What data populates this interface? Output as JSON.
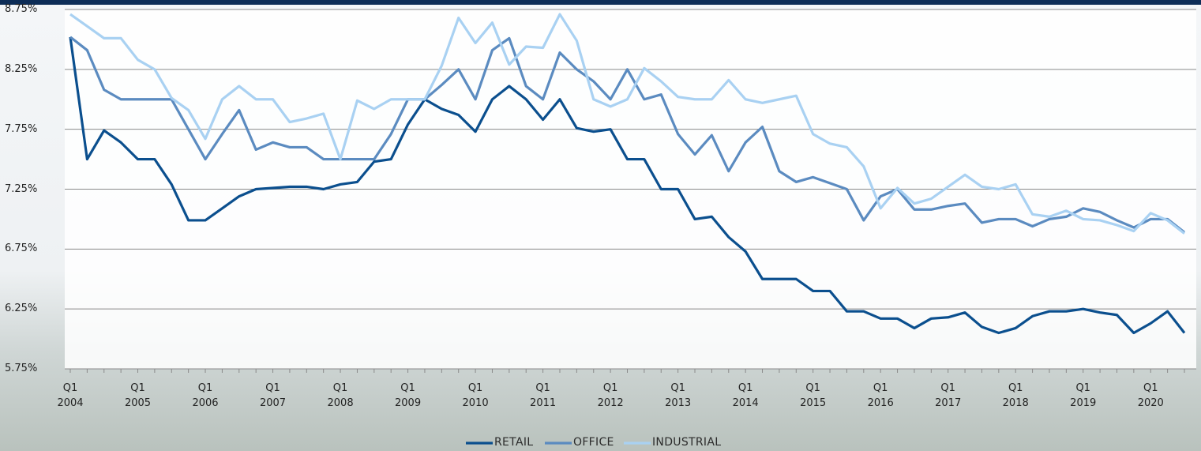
{
  "chart_data": {
    "type": "line",
    "categories": [
      "Q1 2004",
      null,
      null,
      null,
      "Q1 2005",
      null,
      null,
      null,
      "Q1 2006",
      null,
      null,
      null,
      "Q1 2007",
      null,
      null,
      null,
      "Q1 2008",
      null,
      null,
      null,
      "Q1 2009",
      null,
      null,
      null,
      "Q1 2010",
      null,
      null,
      null,
      "Q1 2011",
      null,
      null,
      null,
      "Q1 2012",
      null,
      null,
      null,
      "Q1 2013",
      null,
      null,
      null,
      "Q1 2014",
      null,
      null,
      null,
      "Q1 2015",
      null,
      null,
      null,
      "Q1 2016",
      null,
      null,
      null,
      "Q1 2017",
      null,
      null,
      null,
      "Q1 2018",
      null,
      null,
      null,
      "Q1 2019",
      null,
      null,
      null,
      "Q1 2020",
      null,
      null
    ],
    "series": [
      {
        "name": "RETAIL",
        "color": "#0b4f8e",
        "values": [
          8.52,
          7.5,
          7.74,
          7.64,
          7.5,
          7.5,
          7.29,
          6.99,
          6.99,
          7.09,
          7.19,
          7.25,
          7.26,
          7.27,
          7.27,
          7.25,
          7.29,
          7.31,
          7.48,
          7.5,
          7.79,
          8.0,
          7.92,
          7.87,
          7.73,
          8.0,
          8.11,
          8.0,
          7.83,
          8.0,
          7.76,
          7.73,
          7.75,
          7.5,
          7.5,
          7.25,
          7.25,
          7.0,
          7.02,
          6.85,
          6.73,
          6.5,
          6.5,
          6.5,
          6.4,
          6.4,
          6.23,
          6.23,
          6.17,
          6.17,
          6.09,
          6.17,
          6.18,
          6.22,
          6.1,
          6.05,
          6.09,
          6.19,
          6.23,
          6.23,
          6.25,
          6.22,
          6.2,
          6.05,
          6.13,
          6.23,
          6.05
        ]
      },
      {
        "name": "OFFICE",
        "color": "#5b8bc0",
        "values": [
          8.52,
          8.41,
          8.08,
          8.0,
          8.0,
          8.0,
          8.0,
          7.75,
          7.5,
          7.71,
          7.91,
          7.58,
          7.64,
          7.6,
          7.6,
          7.5,
          7.5,
          7.5,
          7.5,
          7.71,
          8.0,
          8.0,
          8.12,
          8.25,
          8.0,
          8.41,
          8.51,
          8.11,
          8.0,
          8.39,
          8.25,
          8.15,
          8.0,
          8.25,
          8.0,
          8.04,
          7.71,
          7.54,
          7.7,
          7.4,
          7.64,
          7.77,
          7.4,
          7.31,
          7.35,
          7.3,
          7.25,
          6.99,
          7.19,
          7.25,
          7.08,
          7.08,
          7.11,
          7.13,
          6.97,
          7.0,
          7.0,
          6.94,
          7.0,
          7.02,
          7.09,
          7.06,
          6.99,
          6.93,
          7.0,
          7.0,
          6.89
        ]
      },
      {
        "name": "INDUSTRIAL",
        "color": "#a9d1f2",
        "values": [
          8.71,
          8.61,
          8.51,
          8.51,
          8.33,
          8.25,
          8.01,
          7.91,
          7.67,
          8.0,
          8.11,
          8.0,
          8.0,
          7.81,
          7.84,
          7.88,
          7.5,
          7.99,
          7.92,
          8.0,
          8.0,
          8.0,
          8.28,
          8.68,
          8.47,
          8.64,
          8.29,
          8.44,
          8.43,
          8.71,
          8.49,
          8.0,
          7.94,
          8.0,
          8.26,
          8.15,
          8.02,
          8.0,
          8.0,
          8.16,
          8.0,
          7.97,
          8.0,
          8.03,
          7.71,
          7.63,
          7.6,
          7.44,
          7.09,
          7.26,
          7.13,
          7.17,
          7.27,
          7.37,
          7.27,
          7.25,
          7.29,
          7.04,
          7.02,
          7.07,
          7.0,
          6.99,
          6.95,
          6.9,
          7.05,
          6.99,
          6.88
        ]
      }
    ],
    "ylim": [
      5.75,
      8.75
    ],
    "yticks": [
      {
        "value": 5.75,
        "label": "5.75%"
      },
      {
        "value": 6.25,
        "label": "6.25%"
      },
      {
        "value": 6.75,
        "label": "6.75%"
      },
      {
        "value": 7.25,
        "label": "7.25%"
      },
      {
        "value": 7.75,
        "label": "7.75%"
      },
      {
        "value": 8.25,
        "label": "8.25%"
      },
      {
        "value": 8.75,
        "label": "8.75%"
      }
    ],
    "grid": true,
    "legend": "bottom"
  }
}
